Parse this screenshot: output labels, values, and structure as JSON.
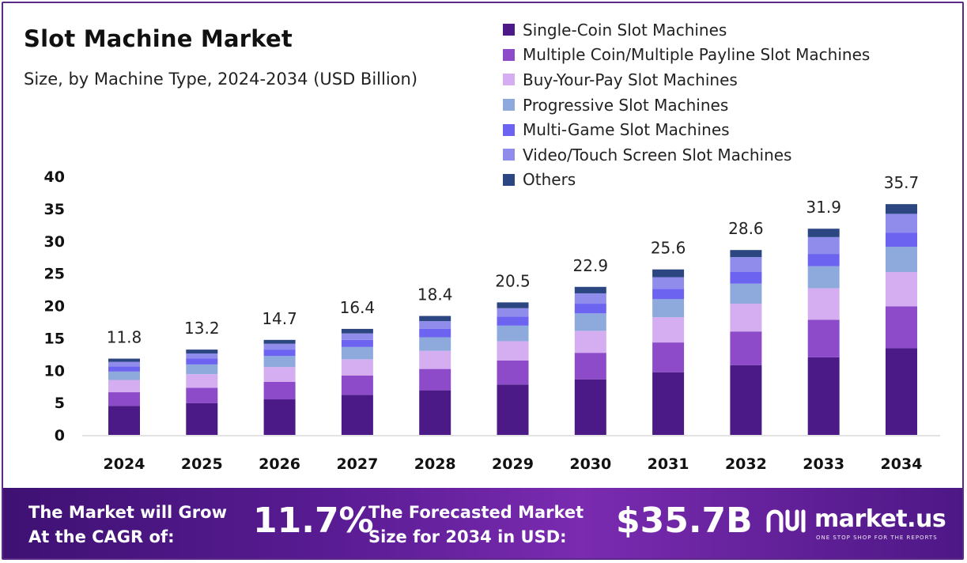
{
  "header": {
    "title": "Slot Machine Market",
    "subtitle": "Size, by Machine Type, 2024-2034 (USD Billion)"
  },
  "chart_data": {
    "type": "bar",
    "stacked": true,
    "categories": [
      "2024",
      "2025",
      "2026",
      "2027",
      "2028",
      "2029",
      "2030",
      "2031",
      "2032",
      "2033",
      "2034"
    ],
    "totals": [
      11.8,
      13.2,
      14.7,
      16.4,
      18.4,
      20.5,
      22.9,
      25.6,
      28.6,
      31.9,
      35.7
    ],
    "total_labels": [
      "11.8",
      "13.2",
      "14.7",
      "16.4",
      "18.4",
      "20.5",
      "22.9",
      "25.6",
      "28.6",
      "31.9",
      "35.7"
    ],
    "series": [
      {
        "name": "Single-Coin Slot Machines",
        "color": "#4b1a87",
        "values": [
          4.5,
          4.9,
          5.5,
          6.2,
          6.9,
          7.8,
          8.6,
          9.7,
          10.8,
          12.0,
          13.4
        ]
      },
      {
        "name": "Multiple Coin/Multiple Payline Slot Machines",
        "color": "#8e4bc9",
        "values": [
          2.1,
          2.4,
          2.7,
          3.0,
          3.3,
          3.7,
          4.1,
          4.6,
          5.2,
          5.8,
          6.5
        ]
      },
      {
        "name": "Buy-Your-Pay Slot Machines",
        "color": "#d4aef0",
        "values": [
          1.9,
          2.1,
          2.3,
          2.5,
          2.8,
          3.0,
          3.4,
          3.9,
          4.3,
          4.9,
          5.3
        ]
      },
      {
        "name": "Progressive Slot Machines",
        "color": "#8eaadc",
        "values": [
          1.3,
          1.5,
          1.7,
          1.9,
          2.1,
          2.4,
          2.7,
          2.8,
          3.1,
          3.4,
          3.9
        ]
      },
      {
        "name": "Multi-Game Slot Machines",
        "color": "#6c63f0",
        "values": [
          0.8,
          0.9,
          1.0,
          1.1,
          1.3,
          1.4,
          1.5,
          1.6,
          1.8,
          1.9,
          2.2
        ]
      },
      {
        "name": "Video/Touch Screen Slot Machines",
        "color": "#8f8cec",
        "values": [
          0.7,
          0.8,
          0.9,
          1.0,
          1.2,
          1.3,
          1.6,
          1.8,
          2.3,
          2.6,
          2.9
        ]
      },
      {
        "name": "Others",
        "color": "#2c4681",
        "values": [
          0.5,
          0.6,
          0.6,
          0.7,
          0.8,
          0.9,
          1.0,
          1.2,
          1.1,
          1.3,
          1.5
        ]
      }
    ],
    "ylim": [
      0,
      40
    ],
    "yticks": [
      "0",
      "5",
      "10",
      "15",
      "20",
      "25",
      "30",
      "35",
      "40"
    ],
    "legend_position": "top-right",
    "grid": false
  },
  "footer": {
    "cagr_label_line1": "The Market will Grow",
    "cagr_label_line2": "At the CAGR of:",
    "cagr_value": "11.7%",
    "forecast_label_line1": "The Forecasted Market",
    "forecast_label_line2": "Size for 2034 in USD:",
    "forecast_value": "$35.7B",
    "brand_name": "market.us",
    "brand_tagline": "ONE STOP SHOP FOR THE REPORTS"
  }
}
